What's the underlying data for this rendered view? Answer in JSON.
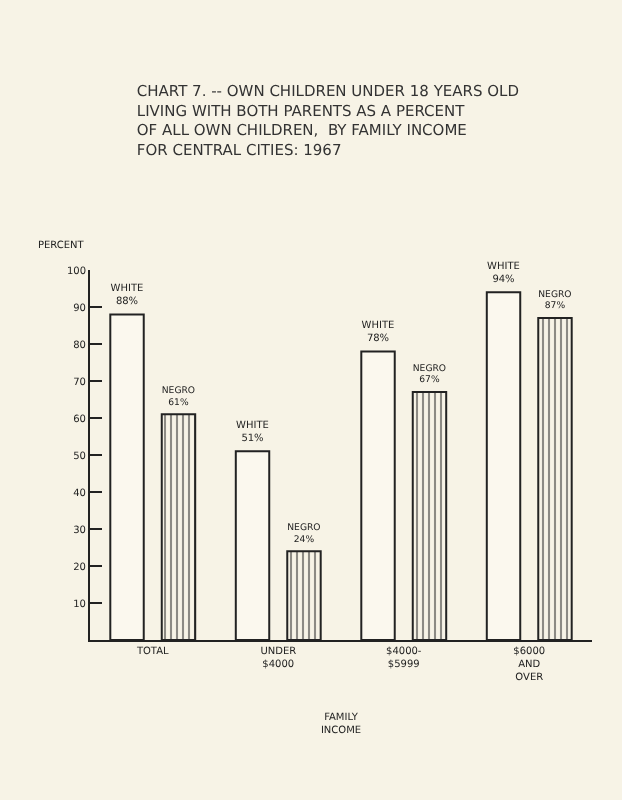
{
  "chart_data": {
    "type": "bar",
    "title": "CHART 7. -- OWN CHILDREN UNDER 18 YEARS OLD\nLIVING WITH BOTH PARENTS AS A PERCENT\nOF ALL OWN CHILDREN,  BY FAMILY INCOME\nFOR CENTRAL CITIES: 1967",
    "categories": [
      "TOTAL",
      "UNDER\n$4000",
      "$4000-\n$5999",
      "$6000\nAND\nOVER"
    ],
    "xlabel": "FAMILY\nINCOME",
    "ylabel": "PERCENT",
    "series": [
      {
        "name": "WHITE",
        "color": "#fbf8ee",
        "values": [
          88,
          51,
          78,
          94
        ],
        "value_labels": [
          "88%",
          "51%",
          "78%",
          "94%"
        ]
      },
      {
        "name": "NEGRO",
        "color": "#222222",
        "values": [
          61,
          24,
          67,
          87
        ],
        "value_labels": [
          "61%",
          "24%",
          "67%",
          "87%"
        ]
      }
    ],
    "ylim": [
      0,
      100
    ],
    "yticks": [
      {
        "value": 0,
        "label": null
      },
      10,
      20,
      30,
      40,
      50,
      60,
      70,
      80,
      90,
      100
    ],
    "grid": false,
    "legend": false
  }
}
